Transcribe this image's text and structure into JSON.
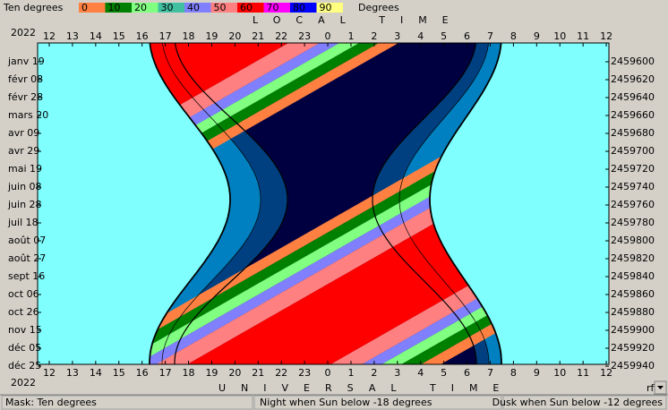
{
  "legend": {
    "title": "Ten degrees",
    "labels": [
      "0",
      "10",
      "20",
      "30",
      "40",
      "50",
      "60",
      "70",
      "80",
      "90"
    ],
    "unit": "Degrees"
  },
  "top_axis": {
    "title": "LOCAL TIME",
    "year": "2022",
    "labels": [
      "12",
      "13",
      "14",
      "15",
      "16",
      "17",
      "18",
      "19",
      "20",
      "21",
      "22",
      "23",
      "0",
      "1",
      "2",
      "3",
      "4",
      "5",
      "6",
      "7",
      "8",
      "9",
      "10",
      "11",
      "12"
    ]
  },
  "bottom_axis": {
    "title": "UNIVERSAL TIME",
    "year": "2022",
    "labels": [
      "12",
      "13",
      "14",
      "15",
      "16",
      "17",
      "18",
      "19",
      "20",
      "21",
      "22",
      "23",
      "0",
      "1",
      "2",
      "3",
      "4",
      "5",
      "6",
      "7",
      "8",
      "9",
      "10",
      "11",
      "12"
    ]
  },
  "left_labels": [
    "janv 19",
    "févr 08",
    "févr 28",
    "mars 20",
    "avr 09",
    "avr 29",
    "mai 19",
    "juin 08",
    "juin 28",
    "juil 18",
    "août 07",
    "août 27",
    "sept 16",
    "oct 06",
    "oct 26",
    "nov 15",
    "déc 05",
    "déc 25"
  ],
  "right_labels": [
    "2459600",
    "2459620",
    "2459640",
    "2459660",
    "2459680",
    "2459700",
    "2459720",
    "2459740",
    "2459760",
    "2459780",
    "2459800",
    "2459820",
    "2459840",
    "2459860",
    "2459880",
    "2459900",
    "2459920",
    "2459940"
  ],
  "corner_label": "rf",
  "status_bar": {
    "mask": "Mask:  Ten degrees",
    "night": "Night when Sun below -18 degrees",
    "dusk": "Dusk when Sun below -12 degrees"
  }
}
